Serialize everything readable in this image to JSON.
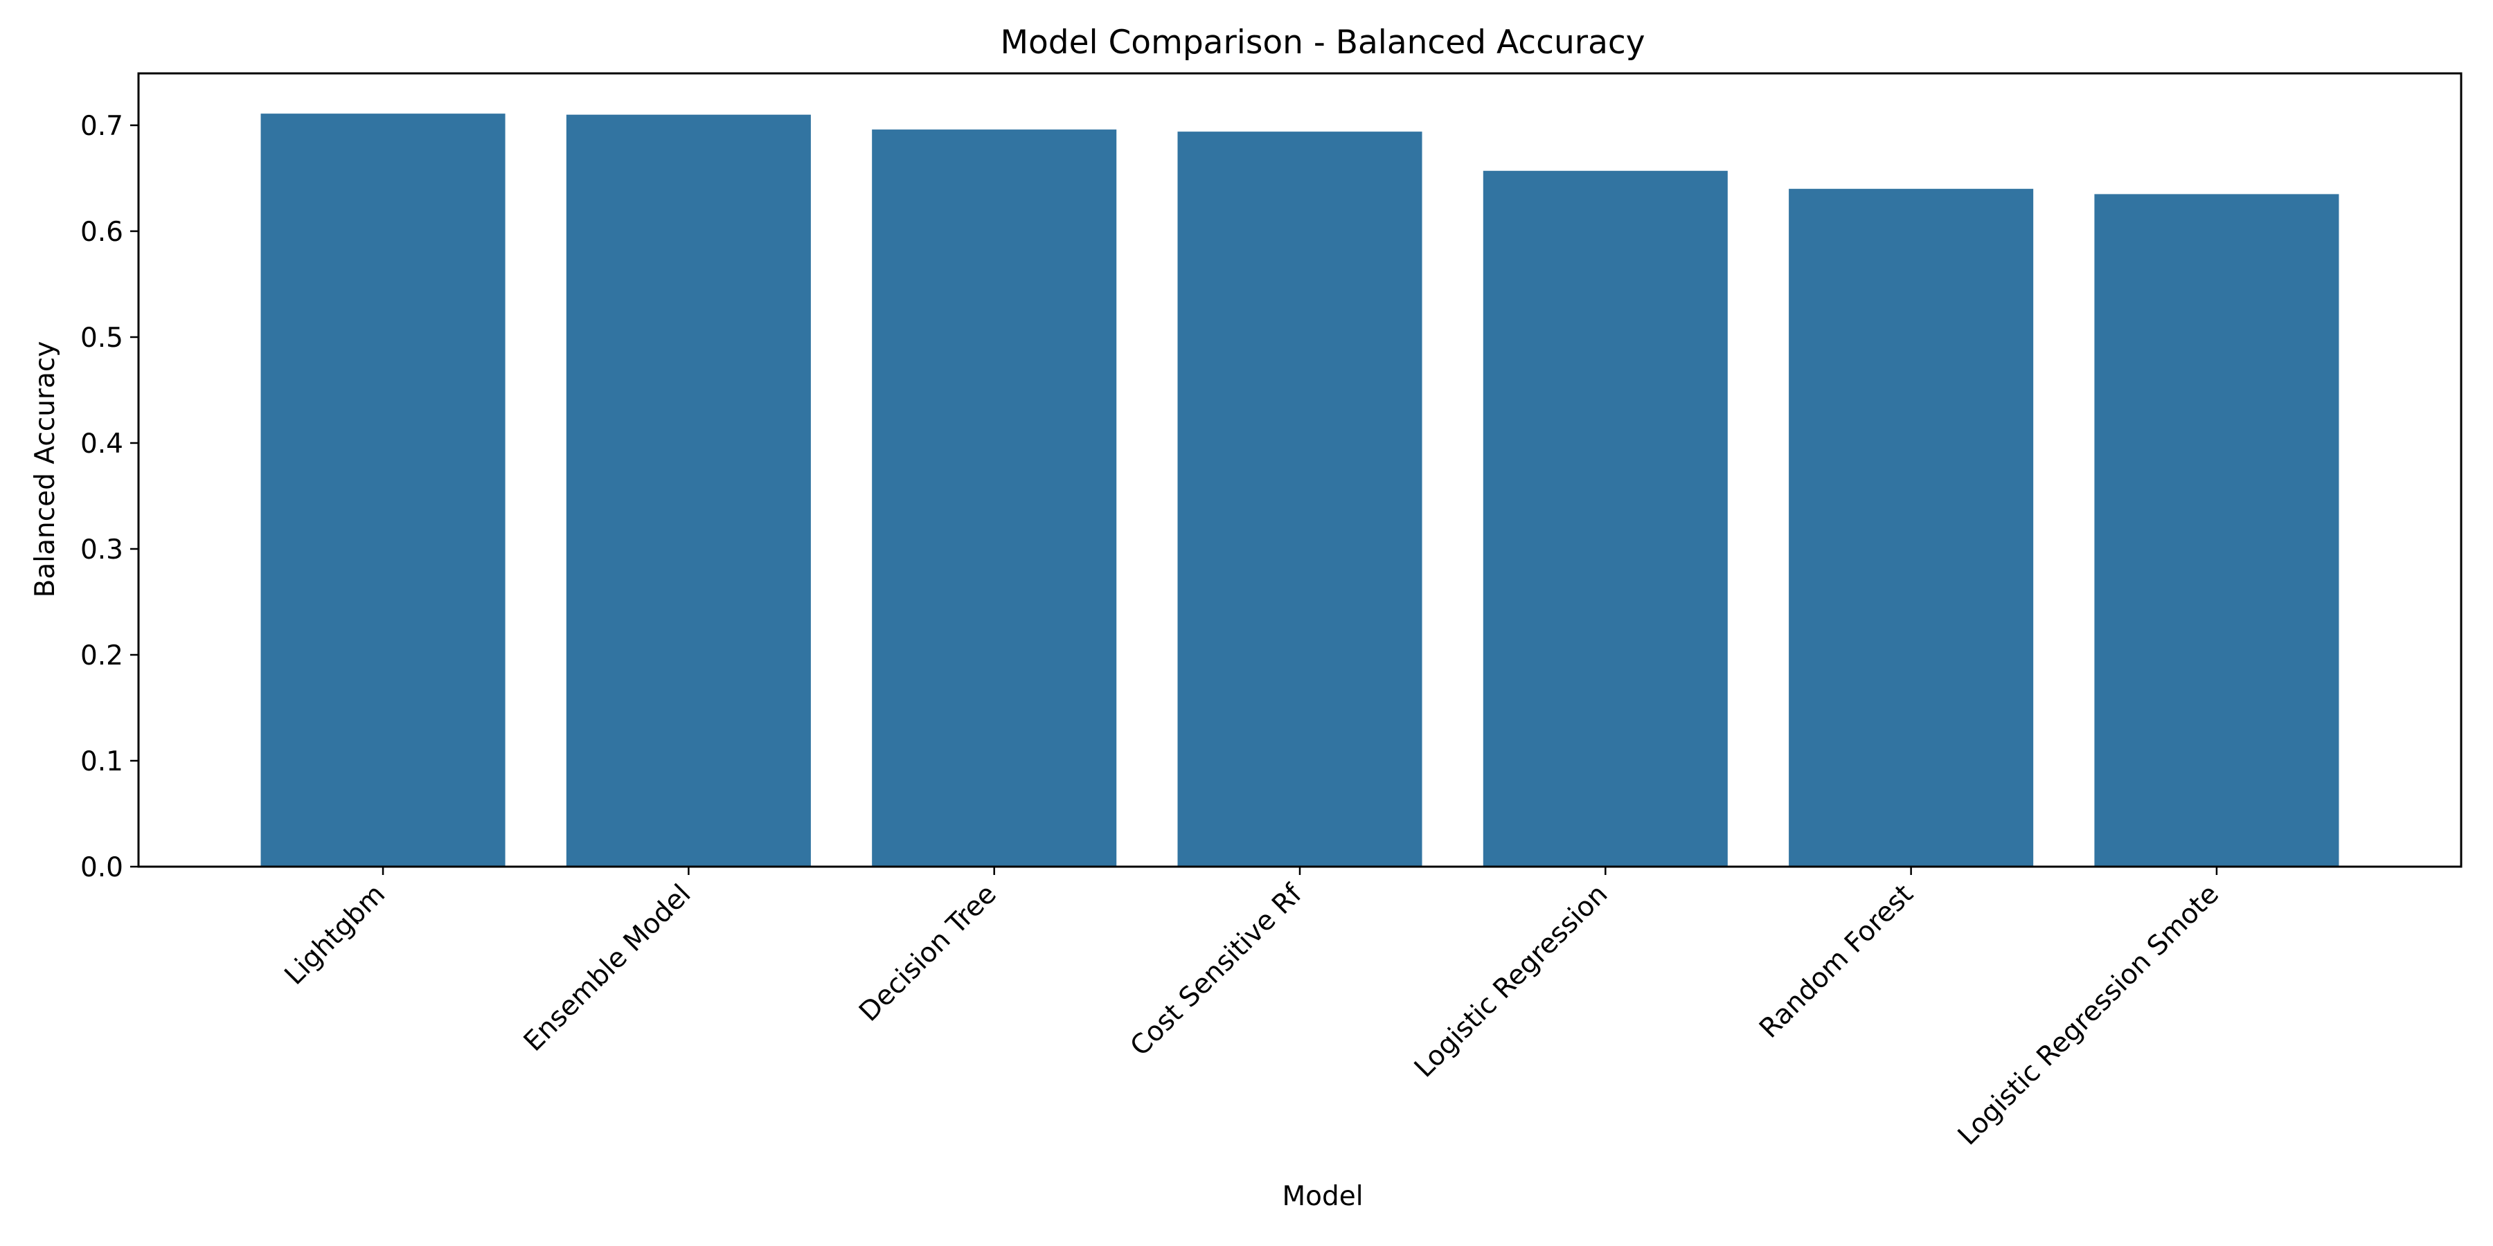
{
  "chart_data": {
    "type": "bar",
    "title": "Model Comparison - Balanced Accuracy",
    "xlabel": "Model",
    "ylabel": "Balanced Accuracy",
    "categories": [
      "Lightgbm",
      "Ensemble Model",
      "Decision Tree",
      "Cost Sensitive Rf",
      "Logistic Regression",
      "Random Forest",
      "Logistic Regression Smote"
    ],
    "values": [
      0.711,
      0.71,
      0.696,
      0.694,
      0.657,
      0.64,
      0.635
    ],
    "ylim": [
      0,
      0.749
    ],
    "yticks": [
      "0.0",
      "0.1",
      "0.2",
      "0.3",
      "0.4",
      "0.5",
      "0.6",
      "0.7"
    ],
    "grid": false,
    "bar_color": "#3274a1"
  }
}
